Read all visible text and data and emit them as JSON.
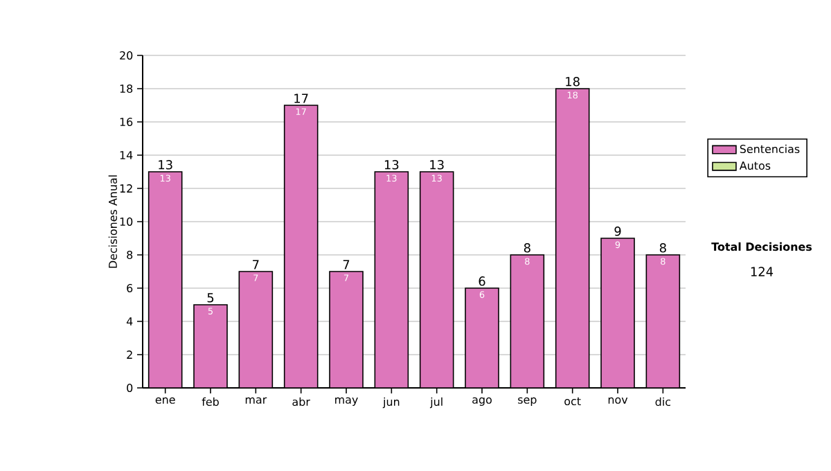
{
  "chart_data": {
    "type": "bar",
    "ylabel": "Decisiones Anual",
    "categories": [
      "ene",
      "feb",
      "mar",
      "abr",
      "may",
      "jun",
      "jul",
      "ago",
      "sep",
      "oct",
      "nov",
      "dic"
    ],
    "series": [
      {
        "name": "Sentencias",
        "color": "#dd77bb",
        "values": [
          13,
          5,
          7,
          17,
          7,
          13,
          13,
          6,
          8,
          18,
          9,
          8
        ]
      },
      {
        "name": "Autos",
        "color": "#cce699",
        "values": [
          null,
          null,
          null,
          null,
          null,
          null,
          null,
          null,
          null,
          null,
          null,
          null
        ]
      }
    ],
    "data_labels": true,
    "totals": [
      "13",
      "5",
      "7",
      "17",
      "7",
      "13",
      "13",
      "6",
      "8",
      "18",
      "9",
      "8"
    ],
    "ylim": [
      0,
      20
    ],
    "yticks": [
      0,
      2,
      4,
      6,
      8,
      10,
      12,
      14,
      16,
      18,
      20
    ],
    "grid": "y",
    "legend": "right",
    "annotations": [
      "Total Decisiones",
      "124"
    ]
  }
}
